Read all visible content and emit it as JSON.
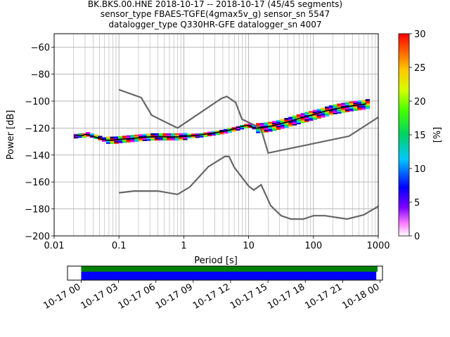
{
  "title_lines": [
    "BK.BKS.00.HNE   2018-10-17 -- 2018-10-17  (45/45 segments)",
    "sensor_type FBAES-TGFE(4gmax5v_g) sensor_sn 5547",
    "datalogger_type Q330HR-GFE datalogger_sn 4007"
  ],
  "chart_data": {
    "type": "heatmap",
    "xlabel": "Period [s]",
    "ylabel": "Power [dB]",
    "xscale": "log",
    "xlim": [
      0.01,
      1000
    ],
    "ylim": [
      -200,
      -50
    ],
    "x_ticks": [
      {
        "v": 0.01,
        "label": "0.01"
      },
      {
        "v": 0.1,
        "label": "0.1"
      },
      {
        "v": 1,
        "label": "1"
      },
      {
        "v": 10,
        "label": "10"
      },
      {
        "v": 100,
        "label": "100"
      },
      {
        "v": 1000,
        "label": "1000"
      }
    ],
    "y_ticks": [
      {
        "v": -60,
        "label": "−60"
      },
      {
        "v": -80,
        "label": "−80"
      },
      {
        "v": -100,
        "label": "−100"
      },
      {
        "v": -120,
        "label": "−120"
      },
      {
        "v": -140,
        "label": "−140"
      },
      {
        "v": -160,
        "label": "−160"
      },
      {
        "v": -180,
        "label": "−180"
      },
      {
        "v": -200,
        "label": "−200"
      }
    ],
    "grid": true,
    "noise_models": [
      {
        "points": [
          [
            0.1,
            -91.5
          ],
          [
            0.22,
            -97.4
          ],
          [
            0.32,
            -110.5
          ],
          [
            0.8,
            -120
          ],
          [
            3.8,
            -98
          ],
          [
            4.6,
            -96.5
          ],
          [
            6.3,
            -101
          ],
          [
            7.9,
            -113.5
          ],
          [
            15.4,
            -120
          ],
          [
            20,
            -138.5
          ],
          [
            354.8,
            -126
          ],
          [
            1000,
            -112
          ]
        ]
      },
      {
        "points": [
          [
            0.1,
            -168
          ],
          [
            0.17,
            -166.7
          ],
          [
            0.4,
            -166.7
          ],
          [
            0.8,
            -169.2
          ],
          [
            1.24,
            -163.7
          ],
          [
            2.4,
            -148.6
          ],
          [
            4.3,
            -141.1
          ],
          [
            5.0,
            -141.1
          ],
          [
            6.0,
            -149.1
          ],
          [
            10,
            -163
          ],
          [
            12,
            -166
          ],
          [
            15.6,
            -162.1
          ],
          [
            21.9,
            -177.5
          ],
          [
            31.6,
            -185
          ],
          [
            45,
            -187.5
          ],
          [
            70,
            -187.5
          ],
          [
            100,
            -185
          ],
          [
            150,
            -185
          ],
          [
            328,
            -187.5
          ],
          [
            600,
            -184.4
          ],
          [
            1000,
            -178
          ]
        ]
      }
    ],
    "median_curve": [
      [
        0.02,
        -126
      ],
      [
        0.023,
        -125.5
      ],
      [
        0.028,
        -125.5
      ],
      [
        0.031,
        -124.5
      ],
      [
        0.034,
        -125
      ],
      [
        0.037,
        -126
      ],
      [
        0.042,
        -126.5
      ],
      [
        0.048,
        -127.5
      ],
      [
        0.055,
        -128.5
      ],
      [
        0.065,
        -129
      ],
      [
        0.08,
        -129
      ],
      [
        0.1,
        -128.5
      ],
      [
        0.13,
        -128
      ],
      [
        0.17,
        -127.5
      ],
      [
        0.22,
        -127
      ],
      [
        0.3,
        -126.5
      ],
      [
        0.4,
        -126.5
      ],
      [
        0.55,
        -126.5
      ],
      [
        0.8,
        -126.5
      ],
      [
        1.1,
        -126
      ],
      [
        1.6,
        -125.5
      ],
      [
        2.2,
        -124.5
      ],
      [
        3,
        -123.5
      ],
      [
        4,
        -122.5
      ],
      [
        5,
        -121.5
      ],
      [
        6,
        -120.5
      ],
      [
        7,
        -119.5
      ],
      [
        8.5,
        -118.5
      ],
      [
        10,
        -118
      ],
      [
        11,
        -119
      ],
      [
        12,
        -120
      ],
      [
        14,
        -120
      ],
      [
        17,
        -119.5
      ],
      [
        20,
        -119
      ],
      [
        25,
        -118
      ],
      [
        30,
        -117
      ],
      [
        40,
        -115.5
      ],
      [
        50,
        -114
      ],
      [
        70,
        -112
      ],
      [
        100,
        -110
      ],
      [
        140,
        -108
      ],
      [
        200,
        -106
      ],
      [
        300,
        -104.5
      ],
      [
        400,
        -103.5
      ],
      [
        600,
        -102.5
      ],
      [
        650,
        -102
      ]
    ],
    "pdf_color_scale": {
      "label": "[%]",
      "min": 0,
      "max": 30,
      "ticks": [
        0,
        5,
        10,
        15,
        20,
        25,
        30
      ]
    },
    "data_coverage": {
      "time_ticks": [
        "10-17 00",
        "10-17 03",
        "10-17 06",
        "10-17 09",
        "10-17 12",
        "10-17 15",
        "10-17 18",
        "10-17 21",
        "10-18 00"
      ],
      "time_range_hours": [
        -1.1,
        24.2
      ],
      "bars": [
        {
          "color": "#008000",
          "start_hour": 0,
          "end_hour": 23.8
        },
        {
          "color": "#0000ff",
          "start_hour": 0,
          "end_hour": 23.7
        }
      ]
    }
  }
}
